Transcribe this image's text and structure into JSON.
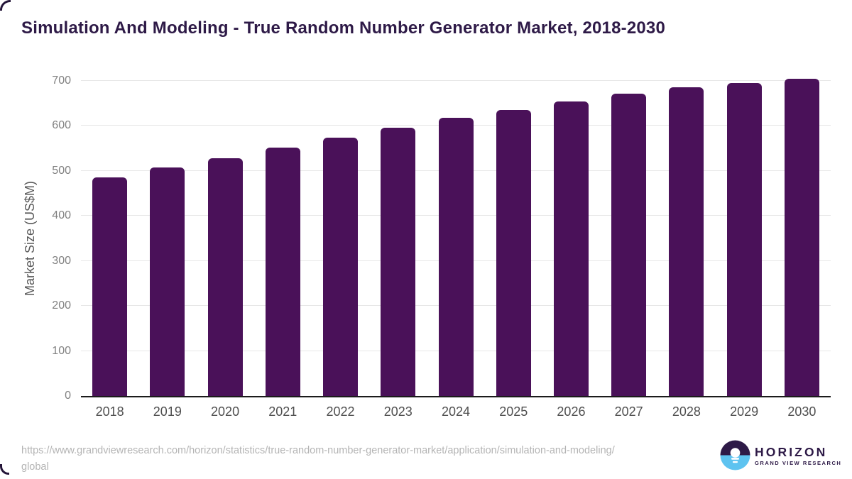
{
  "chart_data": {
    "type": "bar",
    "title": "Simulation And Modeling - True Random Number Generator Market, 2018-2030",
    "categories": [
      "2018",
      "2019",
      "2020",
      "2021",
      "2022",
      "2023",
      "2024",
      "2025",
      "2026",
      "2027",
      "2028",
      "2029",
      "2030"
    ],
    "values": [
      485,
      508,
      529,
      552,
      574,
      596,
      618,
      636,
      655,
      671,
      686,
      696,
      705
    ],
    "xlabel": "",
    "ylabel": "Market Size (US$M)",
    "ylim": [
      0,
      700
    ],
    "yticks": [
      0,
      100,
      200,
      300,
      400,
      500,
      600,
      700
    ],
    "grid": true,
    "legend": "none",
    "bar_color": "#4a1159"
  },
  "footer": {
    "source_url_lines": [
      "https://www.grandviewresearch.com/horizon/statistics/true-random-number-generator-market/application/simulation-and-modeling/",
      "global"
    ],
    "logo": {
      "name": "HORIZON",
      "tagline": "GRAND VIEW RESEARCH"
    }
  },
  "colors": {
    "bar": "#4a1159",
    "title_text": "#2e1a47",
    "y_tick_text": "#818181",
    "x_tick_text": "#4f4f4f",
    "gridline": "#e7e7e7",
    "axis_line": "#1b1b1b",
    "url_text": "#b4b4b4",
    "logo_purple": "#2e1a47",
    "logo_blue": "#5ec3f0"
  }
}
